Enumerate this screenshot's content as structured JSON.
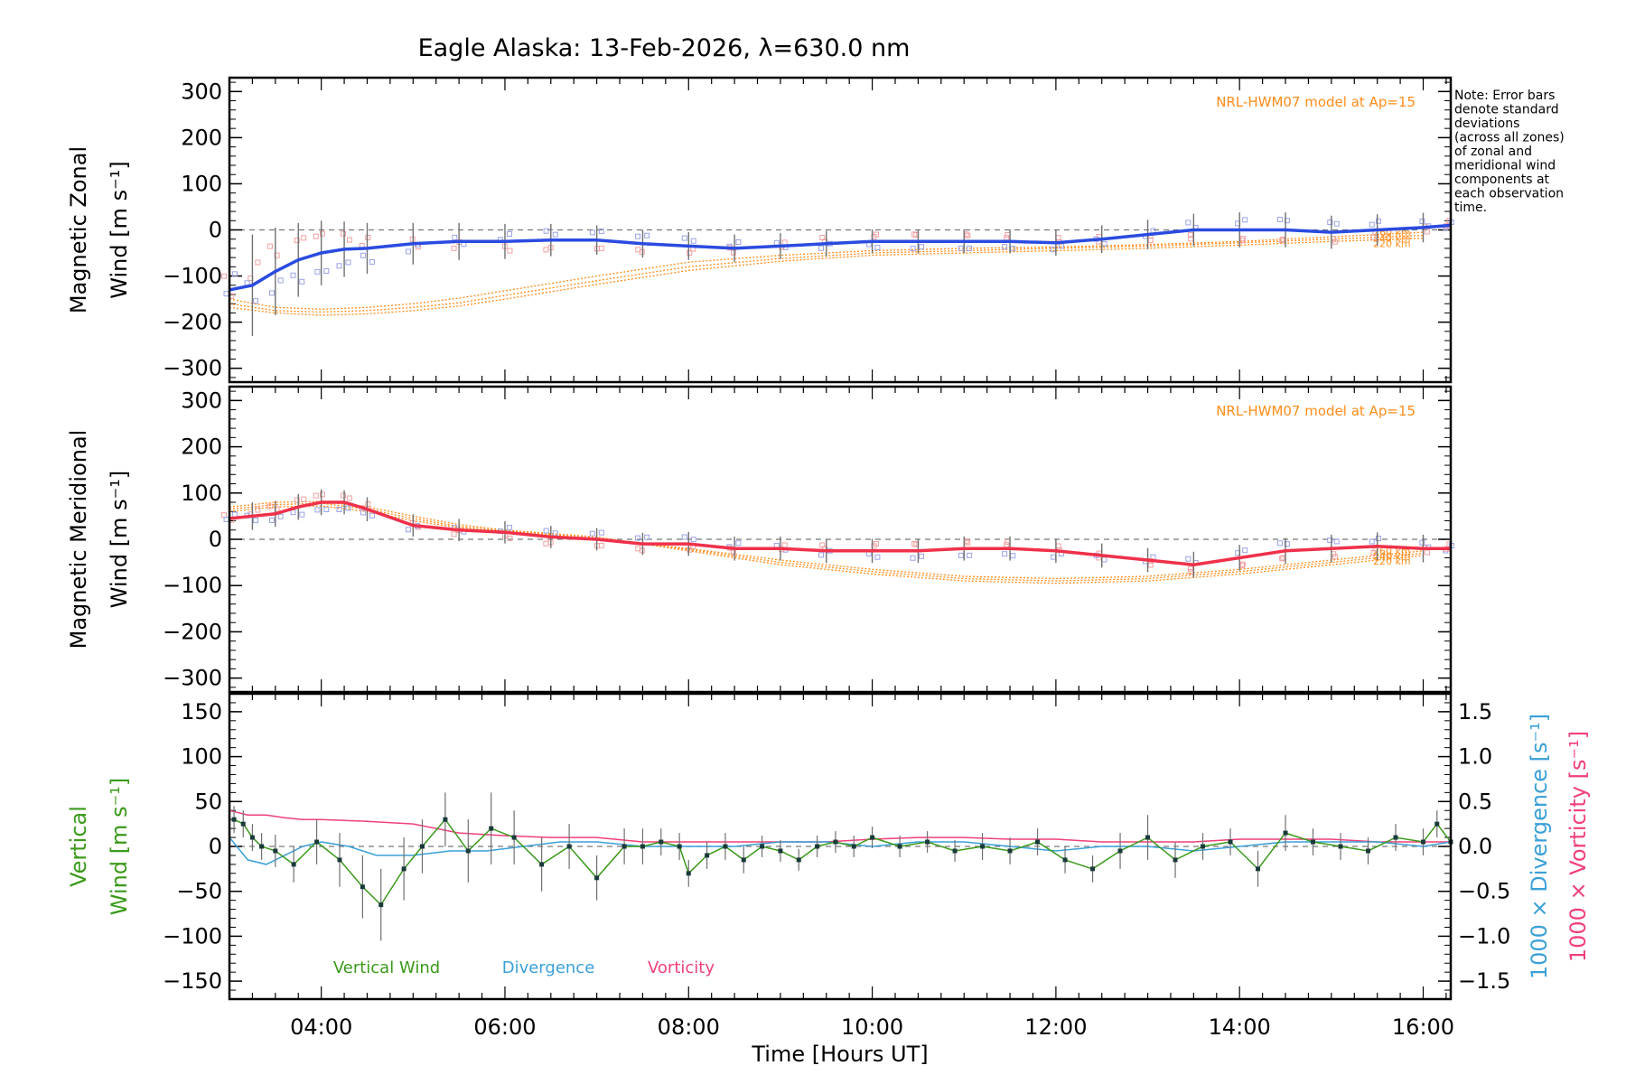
{
  "title": "Eagle Alaska: 13-Feb-2026, λ=630.0 nm",
  "note": [
    "Note: Error bars",
    "denote standard",
    "deviations",
    "(across all zones)",
    "of zonal and",
    "meridional wind",
    "components at",
    "each observation",
    "time."
  ],
  "colors": {
    "zonal": "#2a4be0",
    "meridional": "#f0304a",
    "model": "#ff8c1a",
    "vertical": "#3a9a1a",
    "divergence": "#3aa0d8",
    "vorticity": "#f0407a",
    "errorbar": "#707070",
    "scatter": "#9aa3e8",
    "scatter_warm": "#f2a0a0"
  },
  "chart_data": [
    {
      "type": "line",
      "name": "zonal",
      "ylabel_lines": [
        "Magnetic Zonal",
        "Wind [m s⁻¹]"
      ],
      "model_label": "NRL-HWM07 model at Ap=15",
      "model_heights": [
        "260 km",
        "240 km",
        "220 km"
      ],
      "xlim": [
        3.0,
        16.3
      ],
      "ylim": [
        -330,
        330
      ],
      "yticks": [
        300,
        200,
        100,
        0,
        -100,
        -200,
        -300
      ],
      "x": [
        3.0,
        3.25,
        3.5,
        3.75,
        4.0,
        4.25,
        4.5,
        5.0,
        5.5,
        6.0,
        6.5,
        7.0,
        7.5,
        8.0,
        8.5,
        9.0,
        9.5,
        10.0,
        10.5,
        11.0,
        11.5,
        12.0,
        12.5,
        13.0,
        13.5,
        14.0,
        14.5,
        15.0,
        15.5,
        16.0,
        16.3
      ],
      "y": [
        -130,
        -120,
        -90,
        -65,
        -50,
        -42,
        -40,
        -30,
        -25,
        -25,
        -22,
        -22,
        -30,
        -35,
        -40,
        -35,
        -30,
        -25,
        -25,
        -25,
        -25,
        -28,
        -20,
        -10,
        0,
        0,
        0,
        -5,
        0,
        5,
        10
      ],
      "err": [
        120,
        110,
        95,
        80,
        70,
        60,
        55,
        45,
        40,
        38,
        35,
        32,
        30,
        30,
        30,
        28,
        28,
        26,
        26,
        26,
        26,
        28,
        30,
        32,
        35,
        38,
        38,
        36,
        34,
        32,
        32
      ],
      "model_x": [
        3.0,
        3.5,
        4.0,
        4.5,
        5.0,
        5.5,
        6.0,
        7.0,
        8.0,
        9.0,
        10.0,
        11.0,
        12.0,
        13.0,
        14.0,
        15.0,
        16.0
      ],
      "model": [
        {
          "name": "260 km",
          "y": [
            -150,
            -168,
            -172,
            -168,
            -160,
            -148,
            -132,
            -100,
            -70,
            -55,
            -45,
            -40,
            -37,
            -32,
            -25,
            -15,
            -5
          ]
        },
        {
          "name": "240 km",
          "y": [
            -160,
            -175,
            -178,
            -175,
            -168,
            -158,
            -142,
            -110,
            -80,
            -62,
            -50,
            -45,
            -40,
            -35,
            -28,
            -20,
            -12
          ]
        },
        {
          "name": "220 km",
          "y": [
            -168,
            -180,
            -185,
            -182,
            -175,
            -165,
            -150,
            -118,
            -88,
            -68,
            -55,
            -50,
            -45,
            -40,
            -33,
            -25,
            -18
          ]
        }
      ]
    },
    {
      "type": "line",
      "name": "meridional",
      "ylabel_lines": [
        "Magnetic Meridional",
        "Wind [m s⁻¹]"
      ],
      "model_label": "NRL-HWM07 model at Ap=15",
      "model_heights": [
        "260 km",
        "240 km",
        "220 km"
      ],
      "xlim": [
        3.0,
        16.3
      ],
      "ylim": [
        -330,
        330
      ],
      "yticks": [
        300,
        200,
        100,
        0,
        -100,
        -200,
        -300
      ],
      "x": [
        3.0,
        3.25,
        3.5,
        3.75,
        4.0,
        4.25,
        4.5,
        5.0,
        5.5,
        6.0,
        6.5,
        7.0,
        7.5,
        8.0,
        8.5,
        9.0,
        9.5,
        10.0,
        10.5,
        11.0,
        11.5,
        12.0,
        12.5,
        13.0,
        13.5,
        14.0,
        14.5,
        15.0,
        15.5,
        16.0,
        16.3
      ],
      "y": [
        45,
        50,
        55,
        70,
        80,
        80,
        65,
        30,
        20,
        15,
        5,
        0,
        -10,
        -10,
        -20,
        -20,
        -25,
        -25,
        -25,
        -20,
        -20,
        -25,
        -35,
        -45,
        -55,
        -40,
        -25,
        -20,
        -15,
        -20,
        -20
      ],
      "err": [
        30,
        30,
        28,
        28,
        28,
        26,
        26,
        24,
        24,
        24,
        24,
        24,
        24,
        26,
        26,
        26,
        26,
        26,
        26,
        26,
        26,
        26,
        26,
        26,
        28,
        28,
        28,
        30,
        30,
        30,
        30
      ],
      "model_x": [
        3.0,
        3.5,
        4.0,
        4.5,
        5.0,
        5.5,
        6.0,
        7.0,
        8.0,
        9.0,
        10.0,
        11.0,
        12.0,
        13.0,
        14.0,
        15.0,
        16.0
      ],
      "model": [
        {
          "name": "260 km",
          "y": [
            60,
            70,
            72,
            60,
            40,
            25,
            15,
            0,
            -20,
            -45,
            -65,
            -80,
            -85,
            -80,
            -65,
            -45,
            -25
          ]
        },
        {
          "name": "240 km",
          "y": [
            65,
            75,
            78,
            65,
            45,
            28,
            18,
            2,
            -22,
            -50,
            -70,
            -85,
            -90,
            -85,
            -70,
            -50,
            -30
          ]
        },
        {
          "name": "220 km",
          "y": [
            70,
            80,
            82,
            70,
            50,
            32,
            20,
            5,
            -25,
            -55,
            -75,
            -90,
            -95,
            -90,
            -75,
            -55,
            -35
          ]
        }
      ]
    },
    {
      "type": "line",
      "name": "vertical",
      "ylabel_lines": [
        "Vertical",
        "Wind [m s⁻¹]"
      ],
      "right_labels": [
        "1000 × Divergence [s⁻¹]",
        "1000 × Vorticity [s⁻¹]"
      ],
      "xlim": [
        3.0,
        16.3
      ],
      "ylim": [
        -170,
        170
      ],
      "yticks": [
        150,
        100,
        50,
        0,
        -50,
        -100,
        -150
      ],
      "y2lim": [
        -1.7,
        1.7
      ],
      "y2ticks": [
        1.5,
        1.0,
        0.5,
        0.0,
        -0.5,
        -1.0,
        -1.5
      ],
      "xticks": [
        "04:00",
        "06:00",
        "08:00",
        "10:00",
        "12:00",
        "14:00",
        "16:00"
      ],
      "xtick_values": [
        4,
        6,
        8,
        10,
        12,
        14,
        16
      ],
      "xlabel": "Time [Hours UT]",
      "legend": [
        "Vertical Wind",
        "Divergence",
        "Vorticity"
      ],
      "x": [
        3.05,
        3.15,
        3.25,
        3.35,
        3.5,
        3.7,
        3.95,
        4.2,
        4.45,
        4.65,
        4.9,
        5.1,
        5.35,
        5.6,
        5.85,
        6.1,
        6.4,
        6.7,
        7.0,
        7.3,
        7.5,
        7.7,
        7.9,
        8.0,
        8.2,
        8.4,
        8.6,
        8.8,
        9.0,
        9.2,
        9.4,
        9.6,
        9.8,
        10.0,
        10.3,
        10.6,
        10.9,
        11.2,
        11.5,
        11.8,
        12.1,
        12.4,
        12.7,
        13.0,
        13.3,
        13.6,
        13.9,
        14.2,
        14.5,
        14.8,
        15.1,
        15.4,
        15.7,
        16.0,
        16.15,
        16.3
      ],
      "y": [
        30,
        25,
        10,
        0,
        -5,
        -20,
        5,
        -15,
        -45,
        -65,
        -25,
        0,
        30,
        -5,
        20,
        10,
        -20,
        0,
        -35,
        0,
        0,
        5,
        0,
        -30,
        -10,
        0,
        -15,
        0,
        -5,
        -15,
        0,
        5,
        0,
        10,
        0,
        5,
        -5,
        0,
        -5,
        5,
        -15,
        -25,
        -5,
        10,
        -15,
        0,
        5,
        -25,
        15,
        5,
        0,
        -5,
        10,
        5,
        25,
        5
      ],
      "err": [
        15,
        15,
        15,
        15,
        18,
        20,
        25,
        30,
        35,
        40,
        35,
        30,
        30,
        35,
        40,
        30,
        30,
        25,
        25,
        20,
        20,
        15,
        15,
        15,
        15,
        15,
        15,
        12,
        12,
        12,
        12,
        12,
        12,
        12,
        12,
        12,
        12,
        15,
        15,
        15,
        15,
        15,
        20,
        25,
        20,
        15,
        15,
        20,
        20,
        15,
        15,
        15,
        15,
        15,
        15,
        15
      ],
      "div_x": [
        3.0,
        3.2,
        3.4,
        3.6,
        3.8,
        4.0,
        4.3,
        4.6,
        5.0,
        5.4,
        5.8,
        6.2,
        6.6,
        7.0,
        7.5,
        8.0,
        8.5,
        9.0,
        9.5,
        10.0,
        10.5,
        11.0,
        11.5,
        12.0,
        12.5,
        13.0,
        13.5,
        14.0,
        14.5,
        15.0,
        15.5,
        16.0,
        16.3
      ],
      "div": [
        0.1,
        -0.15,
        -0.2,
        -0.1,
        0.0,
        0.05,
        0.0,
        -0.1,
        -0.1,
        -0.05,
        -0.05,
        0.0,
        0.05,
        0.05,
        0.0,
        0.0,
        0.0,
        0.05,
        0.05,
        0.0,
        0.05,
        0.05,
        0.0,
        -0.05,
        0.0,
        0.0,
        -0.05,
        0.0,
        0.05,
        0.05,
        0.05,
        0.0,
        0.05
      ],
      "vort_x": [
        3.0,
        3.2,
        3.4,
        3.6,
        3.8,
        4.0,
        4.5,
        5.0,
        5.5,
        6.0,
        6.5,
        7.0,
        7.5,
        8.0,
        8.5,
        9.0,
        9.5,
        10.0,
        10.5,
        11.0,
        11.5,
        12.0,
        12.5,
        13.0,
        13.5,
        14.0,
        14.5,
        15.0,
        15.5,
        16.0,
        16.3
      ],
      "vort": [
        0.4,
        0.35,
        0.35,
        0.32,
        0.3,
        0.3,
        0.28,
        0.25,
        0.15,
        0.12,
        0.1,
        0.1,
        0.05,
        0.05,
        0.05,
        0.05,
        0.05,
        0.08,
        0.1,
        0.1,
        0.08,
        0.08,
        0.05,
        0.05,
        0.05,
        0.08,
        0.08,
        0.08,
        0.05,
        0.05,
        0.05
      ]
    }
  ]
}
